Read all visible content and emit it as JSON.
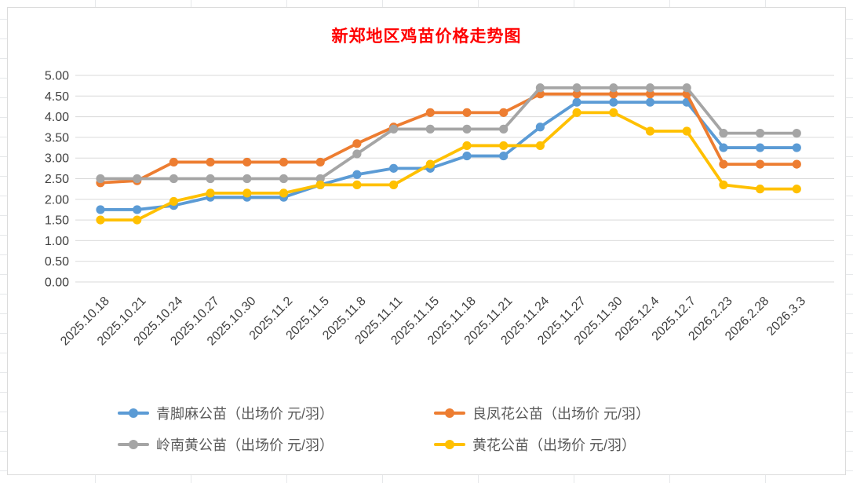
{
  "chart_data": {
    "type": "line",
    "title": "新郑地区鸡苗价格走势图",
    "title_color": "#FF0000",
    "categories": [
      "2025.10.18",
      "2025.10.21",
      "2025.10.24",
      "2025.10.27",
      "2025.10.30",
      "2025.11.2",
      "2025.11.5",
      "2025.11.8",
      "2025.11.11",
      "2025.11.15",
      "2025.11.18",
      "2025.11.21",
      "2025.11.24",
      "2025.11.27",
      "2025.11.30",
      "2025.12.4",
      "2025.12.7",
      "2026.2.23",
      "2026.2.28",
      "2026.3.3"
    ],
    "series": [
      {
        "name": "青脚麻公苗（出场价 元/羽）",
        "color": "#5B9BD5",
        "values": [
          1.75,
          1.75,
          1.85,
          2.05,
          2.05,
          2.05,
          2.35,
          2.6,
          2.75,
          2.75,
          3.05,
          3.05,
          3.75,
          4.35,
          4.35,
          4.35,
          4.35,
          3.25,
          3.25,
          3.25
        ]
      },
      {
        "name": "良凤花公苗（出场价 元/羽）",
        "color": "#ED7D31",
        "values": [
          2.4,
          2.45,
          2.9,
          2.9,
          2.9,
          2.9,
          2.9,
          3.35,
          3.75,
          4.1,
          4.1,
          4.1,
          4.55,
          4.55,
          4.55,
          4.55,
          4.55,
          2.85,
          2.85,
          2.85
        ]
      },
      {
        "name": "岭南黄公苗（出场价 元/羽）",
        "color": "#A5A5A5",
        "values": [
          2.5,
          2.5,
          2.5,
          2.5,
          2.5,
          2.5,
          2.5,
          3.1,
          3.7,
          3.7,
          3.7,
          3.7,
          4.7,
          4.7,
          4.7,
          4.7,
          4.7,
          3.6,
          3.6,
          3.6
        ]
      },
      {
        "name": "黄花公苗（出场价 元/羽）",
        "color": "#FFC000",
        "values": [
          1.5,
          1.5,
          1.95,
          2.15,
          2.15,
          2.15,
          2.35,
          2.35,
          2.35,
          2.85,
          3.3,
          3.3,
          3.3,
          4.1,
          4.1,
          3.65,
          3.65,
          2.35,
          2.25,
          2.25
        ]
      }
    ],
    "y_axis": {
      "min": 0,
      "max": 5,
      "step": 0.5,
      "tick_labels": [
        "5.00",
        "4.50",
        "4.00",
        "3.50",
        "3.00",
        "2.50",
        "2.00",
        "1.50",
        "1.00",
        "0.50",
        "0.00"
      ]
    },
    "x_axis": {
      "label_rotation_deg": -45
    },
    "grid": true,
    "gridline_color": "#D9D9D9",
    "axis_text_color": "#404040",
    "legend_position": "bottom",
    "legend_text_color": "#595959"
  }
}
